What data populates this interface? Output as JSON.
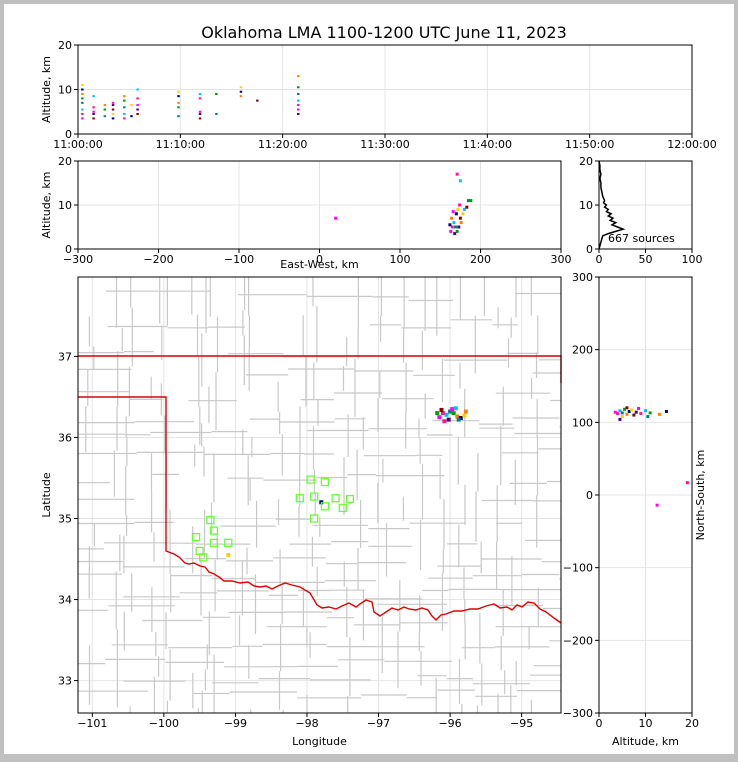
{
  "title": "Oklahoma LMA 1100-1200 UTC June 11, 2023",
  "colors": {
    "state_border": "#e00000",
    "county_lines": "#c8c8c8",
    "stations": "#66ff33",
    "grid": "#e4e4e4"
  },
  "chart_data": [
    {
      "id": "time_height",
      "type": "scatter",
      "ylabel": "Altitude, km",
      "ylim": [
        0,
        20
      ],
      "yticks": [
        "0",
        "10",
        "20"
      ],
      "xticks": [
        "11:00:00",
        "11:10:00",
        "11:20:00",
        "11:30:00",
        "11:40:00",
        "11:50:00",
        "12:00:00"
      ],
      "source_columns": [
        {
          "t_min": 0.4,
          "alt": [
            3.5,
            4.5,
            5.5,
            7,
            8,
            9,
            10,
            11
          ]
        },
        {
          "t_min": 1.5,
          "alt": [
            3.5,
            4.5,
            5,
            6,
            8.5
          ]
        },
        {
          "t_min": 2.6,
          "alt": [
            4,
            5.5,
            6.5
          ]
        },
        {
          "t_min": 3.4,
          "alt": [
            3.5,
            4.5,
            5.5,
            6.5,
            7
          ]
        },
        {
          "t_min": 4.5,
          "alt": [
            3.5,
            4.5,
            6,
            7.5,
            8.5
          ]
        },
        {
          "t_min": 5.2,
          "alt": [
            4,
            6.5
          ]
        },
        {
          "t_min": 5.8,
          "alt": [
            4.5,
            5.5,
            6.5,
            8,
            10
          ]
        },
        {
          "t_min": 9.8,
          "alt": [
            4,
            6,
            7,
            8.5,
            9.5
          ]
        },
        {
          "t_min": 11.9,
          "alt": [
            3.5,
            4.5,
            5,
            8,
            9
          ]
        },
        {
          "t_min": 13.5,
          "alt": [
            4.5,
            9
          ]
        },
        {
          "t_min": 15.9,
          "alt": [
            8.5,
            9.5,
            10.5
          ]
        },
        {
          "t_min": 17.5,
          "alt": [
            7.5
          ]
        },
        {
          "t_min": 21.5,
          "alt": [
            4.5,
            5.5,
            6.5,
            7.5,
            9,
            10.5,
            13
          ]
        }
      ]
    },
    {
      "id": "ew_altitude",
      "type": "scatter",
      "xlabel": "East-West, km",
      "ylabel": "Altitude, km",
      "xlim": [
        -300,
        300
      ],
      "ylim": [
        0,
        20
      ],
      "xticks": [
        "−300",
        "−200",
        "−100",
        "0",
        "100",
        "200",
        "300"
      ],
      "yticks": [
        "0",
        "10",
        "20"
      ],
      "points": [
        [
          163,
          4
        ],
        [
          165,
          5
        ],
        [
          167,
          6
        ],
        [
          169,
          5
        ],
        [
          171,
          4
        ],
        [
          164,
          7
        ],
        [
          170,
          8
        ],
        [
          172,
          9
        ],
        [
          175,
          7
        ],
        [
          168,
          3.5
        ],
        [
          166,
          8.5
        ],
        [
          174,
          10
        ],
        [
          180,
          9
        ],
        [
          185,
          11
        ],
        [
          188,
          11
        ],
        [
          176,
          6
        ],
        [
          162,
          5.5
        ],
        [
          178,
          8
        ],
        [
          183,
          9.5
        ],
        [
          173,
          5
        ],
        [
          20,
          7
        ],
        [
          171,
          17
        ],
        [
          175,
          15.5
        ]
      ]
    },
    {
      "id": "altitude_histogram",
      "type": "line",
      "xlim": [
        0,
        100
      ],
      "ylim": [
        0,
        20
      ],
      "xticks": [
        "0",
        "50",
        "100"
      ],
      "yticks": [
        "0",
        "10",
        "20"
      ],
      "annotation": "667 sources",
      "profile": [
        [
          0,
          0
        ],
        [
          4,
          3
        ],
        [
          10,
          3.5
        ],
        [
          18,
          4
        ],
        [
          26,
          4.5
        ],
        [
          20,
          5
        ],
        [
          14,
          5.5
        ],
        [
          18,
          6
        ],
        [
          12,
          6.5
        ],
        [
          15,
          7
        ],
        [
          10,
          7.5
        ],
        [
          13,
          8
        ],
        [
          8,
          8.5
        ],
        [
          10,
          9
        ],
        [
          6,
          9.5
        ],
        [
          8,
          10
        ],
        [
          5,
          10.5
        ],
        [
          6,
          11
        ],
        [
          4,
          12
        ],
        [
          3,
          13
        ],
        [
          2,
          14
        ],
        [
          2,
          15
        ],
        [
          1,
          16
        ],
        [
          2,
          17
        ],
        [
          1,
          18
        ],
        [
          1,
          19
        ],
        [
          0,
          20
        ]
      ]
    },
    {
      "id": "plan_view",
      "type": "scatter",
      "xlabel": "Longitude",
      "ylabel": "Latitude",
      "xlim": [
        -101.2,
        -94.45
      ],
      "ylim": [
        32.6,
        37.98
      ],
      "xticks": [
        "−101",
        "−100",
        "−99",
        "−98",
        "−97",
        "−96",
        "−95"
      ],
      "yticks": [
        "33",
        "34",
        "35",
        "36",
        "37"
      ],
      "sources": [
        [
          -96.15,
          36.25
        ],
        [
          -96.1,
          36.3
        ],
        [
          -96.05,
          36.28
        ],
        [
          -96.0,
          36.32
        ],
        [
          -95.95,
          36.3
        ],
        [
          -95.9,
          36.26
        ],
        [
          -95.85,
          36.24
        ],
        [
          -95.8,
          36.27
        ],
        [
          -96.12,
          36.34
        ],
        [
          -96.02,
          36.22
        ],
        [
          -95.97,
          36.35
        ],
        [
          -96.08,
          36.2
        ],
        [
          -95.92,
          36.36
        ],
        [
          -95.88,
          36.22
        ],
        [
          -96.18,
          36.3
        ],
        [
          -95.78,
          36.32
        ],
        [
          -97.8,
          35.2
        ],
        [
          -99.1,
          34.55
        ]
      ],
      "stations": [
        [
          -97.95,
          35.48
        ],
        [
          -97.75,
          35.45
        ],
        [
          -98.1,
          35.25
        ],
        [
          -97.9,
          35.27
        ],
        [
          -97.6,
          35.25
        ],
        [
          -97.4,
          35.24
        ],
        [
          -97.75,
          35.15
        ],
        [
          -97.5,
          35.13
        ],
        [
          -97.9,
          35.0
        ],
        [
          -99.35,
          34.98
        ],
        [
          -99.3,
          34.85
        ],
        [
          -99.55,
          34.77
        ],
        [
          -99.3,
          34.7
        ],
        [
          -99.1,
          34.7
        ],
        [
          -99.5,
          34.6
        ],
        [
          -99.45,
          34.52
        ]
      ]
    },
    {
      "id": "ns_altitude",
      "type": "scatter",
      "xlabel": "Altitude, km",
      "ylabel": "North-South, km",
      "xlim": [
        0,
        20
      ],
      "ylim": [
        -300,
        300
      ],
      "xticks": [
        "0",
        "10",
        "20"
      ],
      "yticks": [
        "300",
        "200",
        "100",
        "0",
        "−100",
        "−200",
        "−300"
      ],
      "points": [
        [
          3.5,
          114
        ],
        [
          4,
          112
        ],
        [
          4.5,
          116
        ],
        [
          5,
          113
        ],
        [
          5.5,
          118
        ],
        [
          6,
          111
        ],
        [
          6.5,
          115
        ],
        [
          7,
          117
        ],
        [
          7.5,
          110
        ],
        [
          8,
          114
        ],
        [
          8.5,
          119
        ],
        [
          9,
          112
        ],
        [
          10,
          116
        ],
        [
          10.5,
          108
        ],
        [
          11,
          113
        ],
        [
          13,
          111
        ],
        [
          14.5,
          115
        ],
        [
          5,
          108
        ],
        [
          6,
          120
        ],
        [
          4.5,
          104
        ],
        [
          12.5,
          -14
        ],
        [
          19,
          17
        ]
      ]
    }
  ]
}
